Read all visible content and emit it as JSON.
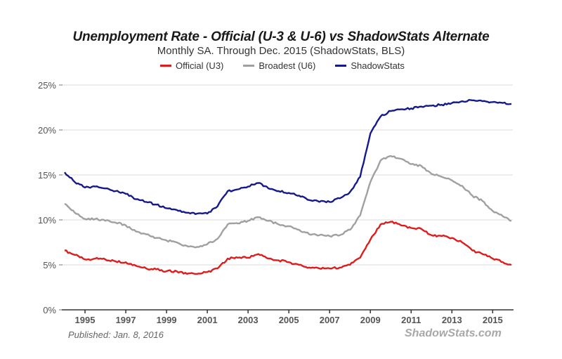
{
  "chart_data": {
    "type": "line",
    "title": "Unemployment Rate - Official (U-3 & U-6) vs ShadowStats Alternate",
    "subtitle": "Monthly SA. Through Dec. 2015  (ShadowStats, BLS)",
    "xlabel": "",
    "ylabel": "",
    "xlim": [
      1994.0,
      2016.0
    ],
    "ylim": [
      0,
      25
    ],
    "grid": true,
    "legend_position": "top-center",
    "y_ticks": [
      {
        "value": 0,
        "label": "0%"
      },
      {
        "value": 5,
        "label": "5%"
      },
      {
        "value": 10,
        "label": "10%"
      },
      {
        "value": 15,
        "label": "15%"
      },
      {
        "value": 20,
        "label": "20%"
      },
      {
        "value": 25,
        "label": "25%"
      }
    ],
    "x_ticks": [
      {
        "value": 1995,
        "label": "1995"
      },
      {
        "value": 1997,
        "label": "1997"
      },
      {
        "value": 1999,
        "label": "1999"
      },
      {
        "value": 2001,
        "label": "2001"
      },
      {
        "value": 2003,
        "label": "2003"
      },
      {
        "value": 2005,
        "label": "2005"
      },
      {
        "value": 2007,
        "label": "2007"
      },
      {
        "value": 2009,
        "label": "2009"
      },
      {
        "value": 2011,
        "label": "2011"
      },
      {
        "value": 2013,
        "label": "2013"
      },
      {
        "value": 2015,
        "label": "2015"
      }
    ],
    "x": [
      1994.0,
      1994.5,
      1995.0,
      1995.5,
      1996.0,
      1996.5,
      1997.0,
      1997.5,
      1998.0,
      1998.5,
      1999.0,
      1999.5,
      2000.0,
      2000.5,
      2001.0,
      2001.5,
      2002.0,
      2002.5,
      2003.0,
      2003.5,
      2004.0,
      2004.5,
      2005.0,
      2005.5,
      2006.0,
      2006.5,
      2007.0,
      2007.5,
      2008.0,
      2008.5,
      2009.0,
      2009.5,
      2010.0,
      2010.5,
      2011.0,
      2011.5,
      2012.0,
      2012.5,
      2013.0,
      2013.5,
      2014.0,
      2014.5,
      2015.0,
      2015.5,
      2015.92
    ],
    "series": [
      {
        "name": "Official (U3)",
        "color": "#e01b1b",
        "values": [
          6.6,
          6.1,
          5.6,
          5.7,
          5.6,
          5.4,
          5.3,
          4.9,
          4.6,
          4.5,
          4.3,
          4.3,
          4.0,
          4.0,
          4.2,
          4.6,
          5.7,
          5.8,
          5.8,
          6.2,
          5.7,
          5.5,
          5.3,
          5.0,
          4.7,
          4.6,
          4.6,
          4.7,
          5.0,
          5.8,
          7.8,
          9.5,
          9.8,
          9.4,
          9.1,
          9.0,
          8.3,
          8.2,
          8.0,
          7.5,
          6.6,
          6.2,
          5.7,
          5.3,
          5.0
        ]
      },
      {
        "name": "Broadest (U6)",
        "color": "#a0a0a0",
        "values": [
          11.8,
          10.8,
          10.1,
          10.1,
          9.9,
          9.7,
          9.4,
          8.7,
          8.4,
          8.0,
          7.7,
          7.5,
          7.1,
          7.0,
          7.3,
          7.9,
          9.5,
          9.6,
          9.9,
          10.3,
          9.9,
          9.5,
          9.3,
          8.9,
          8.4,
          8.3,
          8.2,
          8.3,
          8.9,
          10.5,
          14.2,
          16.6,
          17.1,
          16.8,
          16.2,
          16.0,
          15.1,
          14.8,
          14.4,
          13.8,
          12.7,
          12.1,
          11.0,
          10.4,
          9.9
        ]
      },
      {
        "name": "ShadowStats",
        "color": "#141a8c",
        "values": [
          15.3,
          14.2,
          13.6,
          13.7,
          13.5,
          13.2,
          12.9,
          12.3,
          12.0,
          11.7,
          11.3,
          11.1,
          10.8,
          10.7,
          10.7,
          11.5,
          13.2,
          13.4,
          13.7,
          14.1,
          13.5,
          13.2,
          13.0,
          12.7,
          12.2,
          12.0,
          12.0,
          12.4,
          13.1,
          14.8,
          19.6,
          21.5,
          22.1,
          22.3,
          22.4,
          22.6,
          22.7,
          22.8,
          23.0,
          23.2,
          23.3,
          23.2,
          23.1,
          23.0,
          22.9
        ]
      }
    ]
  },
  "legend": {
    "items": [
      {
        "label": "Official (U3)",
        "color": "#e01b1b"
      },
      {
        "label": "Broadest (U6)",
        "color": "#a0a0a0"
      },
      {
        "label": "ShadowStats",
        "color": "#141a8c"
      }
    ]
  },
  "footer": {
    "published": "Published: Jan. 8, 2016",
    "brand": "ShadowStats.com"
  }
}
